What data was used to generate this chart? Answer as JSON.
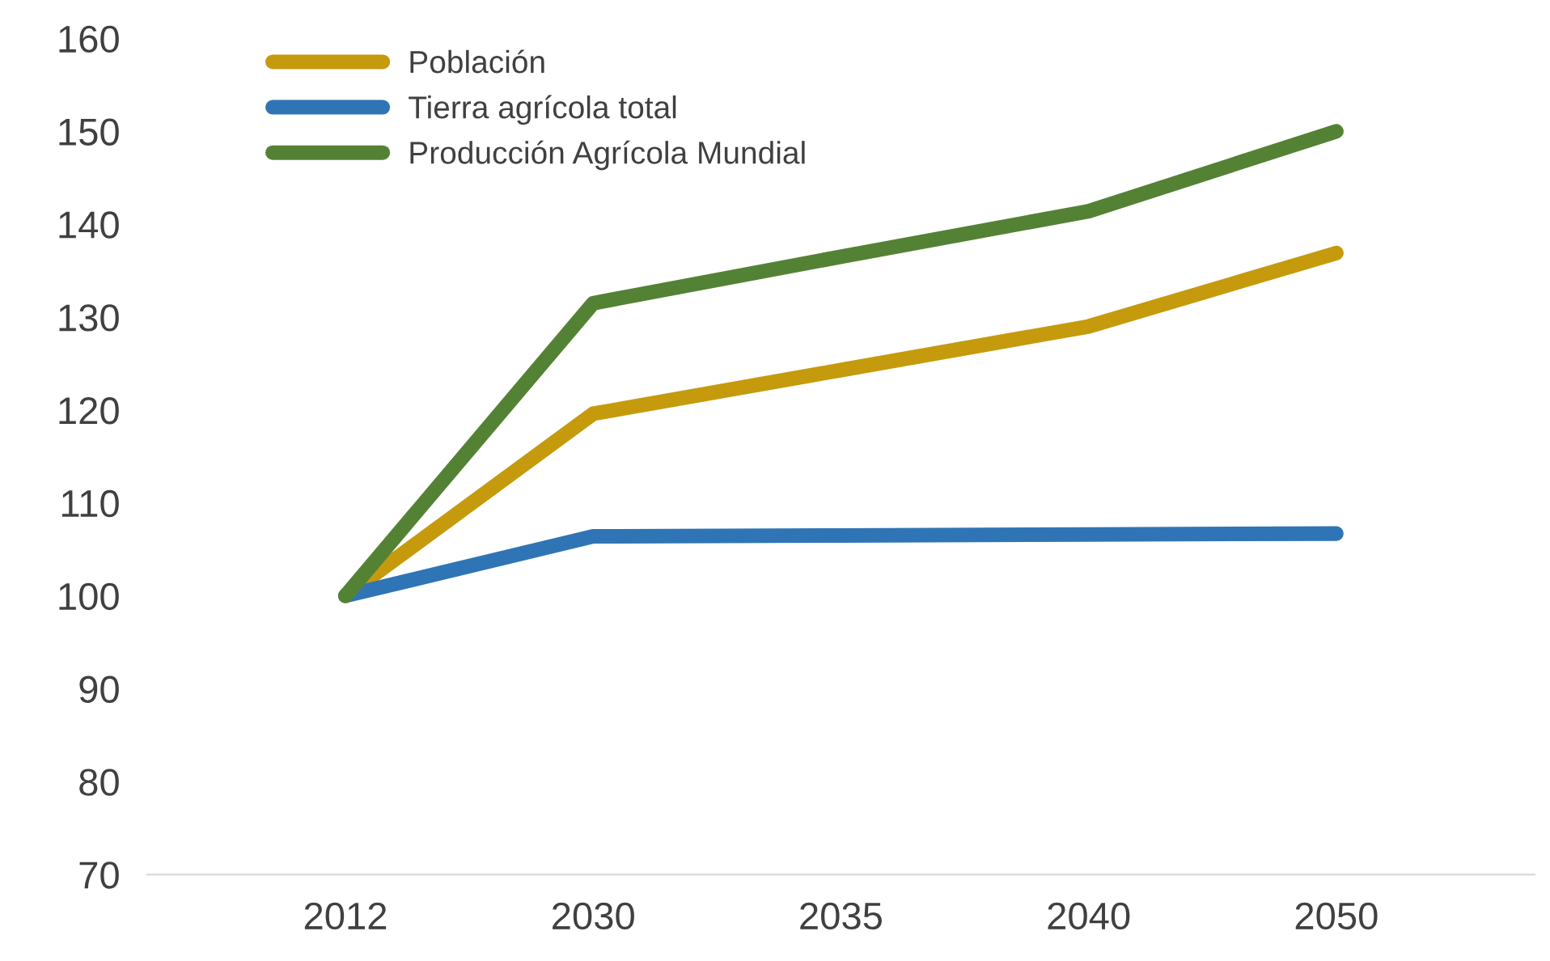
{
  "chart_data": {
    "type": "line",
    "categories": [
      "2012",
      "2030",
      "2035",
      "2040",
      "2050"
    ],
    "series": [
      {
        "name": "Población",
        "color": "#c59a0c",
        "values": [
          100,
          119.6,
          124.3,
          129,
          136.9
        ]
      },
      {
        "name": "Tierra agrícola total",
        "color": "#2f75b5",
        "values": [
          100,
          106.4,
          106.5,
          106.6,
          106.7
        ]
      },
      {
        "name": "Producción Agrícola Mundial",
        "color": "#548235",
        "values": [
          100,
          131.5,
          136.5,
          141.4,
          150
        ]
      }
    ],
    "ylim": [
      70,
      160
    ],
    "yticks": [
      70,
      80,
      90,
      100,
      110,
      120,
      130,
      140,
      150,
      160
    ],
    "grid": false,
    "legend": "top left",
    "marker": "none",
    "line_style": "solid"
  }
}
